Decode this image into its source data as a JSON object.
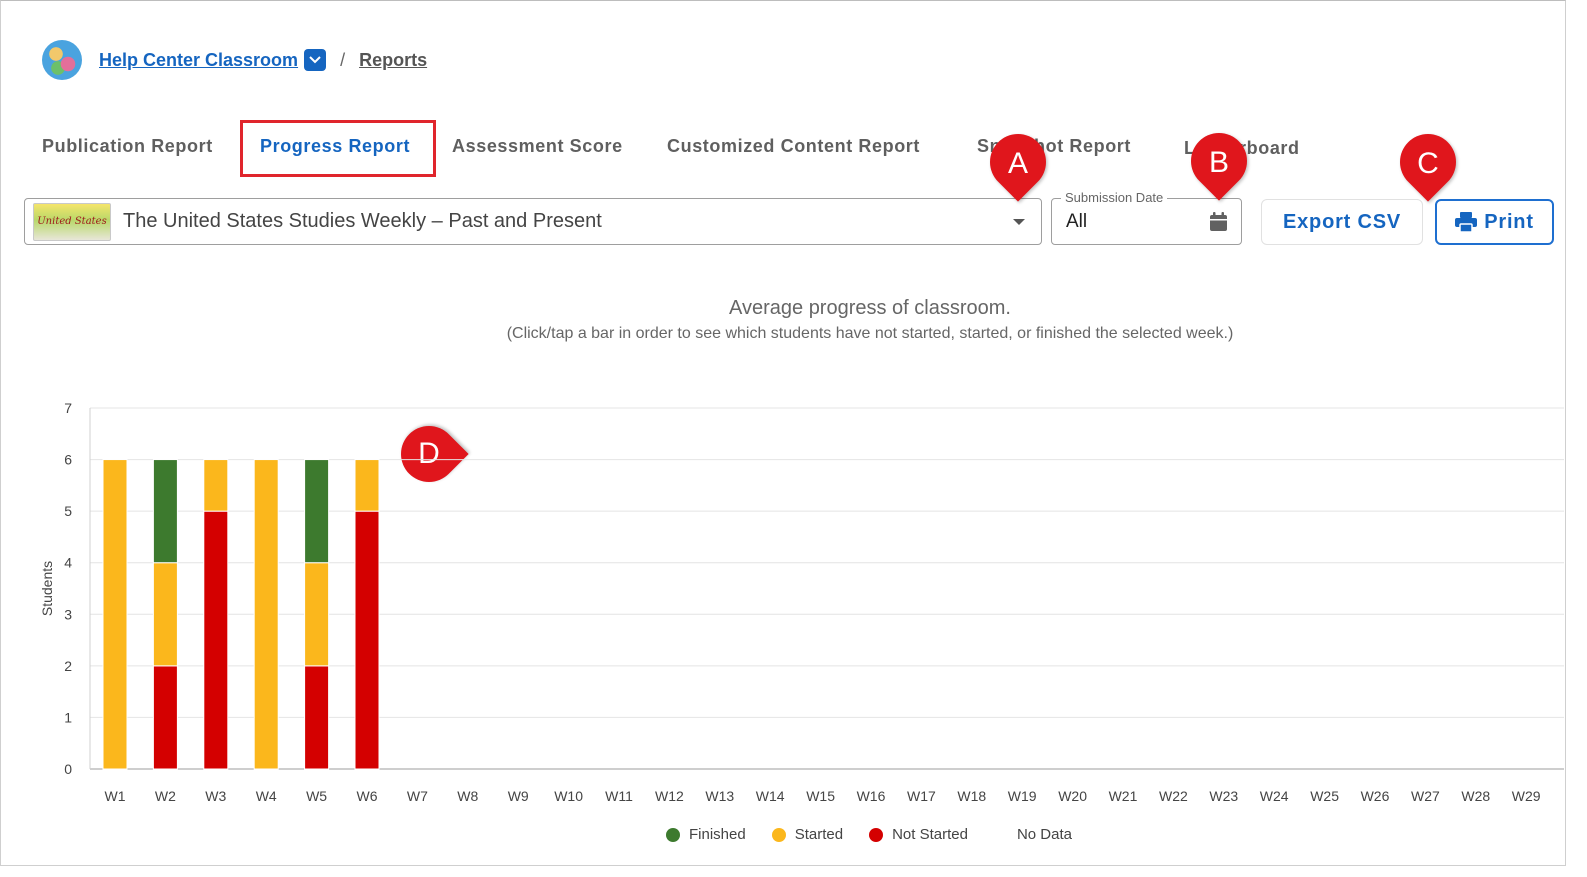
{
  "breadcrumb": {
    "classroom": "Help Center Classroom",
    "separator": "/",
    "current": "Reports"
  },
  "tabs": [
    {
      "label": "Publication Report"
    },
    {
      "label": "Progress Report",
      "active": true
    },
    {
      "label": "Assessment Score"
    },
    {
      "label": "Customized Content Report"
    },
    {
      "label": "Snapshot Report"
    },
    {
      "label": "Leaderboard"
    }
  ],
  "controls": {
    "book_thumb_text": "United States",
    "book_title": "The United States Studies Weekly – Past and Present",
    "date_label": "Submission Date",
    "date_value": "All",
    "export_label": "Export CSV",
    "print_label": "Print"
  },
  "callouts": {
    "a": "A",
    "b": "B",
    "c": "C",
    "d": "D"
  },
  "colors": {
    "accent": "#1565c0",
    "finished": "#3d7a2e",
    "started": "#fbb71c",
    "not_started": "#d40000",
    "callout": "#e0161c"
  },
  "chart_title": "Average progress of classroom.",
  "chart_subtitle": "(Click/tap a bar in order to see which students have not started, started, or finished the selected week.)",
  "chart_data": {
    "type": "bar",
    "stacked": true,
    "ylabel": "Students",
    "ylim": [
      0,
      7
    ],
    "yticks": [
      0,
      1,
      2,
      3,
      4,
      5,
      6,
      7
    ],
    "grid": true,
    "legend": "bottom",
    "categories": [
      "W1",
      "W2",
      "W3",
      "W4",
      "W5",
      "W6",
      "W7",
      "W8",
      "W9",
      "W10",
      "W11",
      "W12",
      "W13",
      "W14",
      "W15",
      "W16",
      "W17",
      "W18",
      "W19",
      "W20",
      "W21",
      "W22",
      "W23",
      "W24",
      "W25",
      "W26",
      "W27",
      "W28",
      "W29"
    ],
    "series": [
      {
        "name": "Not Started",
        "values": [
          0,
          2,
          5,
          0,
          2,
          5,
          0,
          0,
          0,
          0,
          0,
          0,
          0,
          0,
          0,
          0,
          0,
          0,
          0,
          0,
          0,
          0,
          0,
          0,
          0,
          0,
          0,
          0,
          0
        ]
      },
      {
        "name": "Started",
        "values": [
          6,
          2,
          1,
          6,
          2,
          1,
          0,
          0,
          0,
          0,
          0,
          0,
          0,
          0,
          0,
          0,
          0,
          0,
          0,
          0,
          0,
          0,
          0,
          0,
          0,
          0,
          0,
          0,
          0
        ]
      },
      {
        "name": "Finished",
        "values": [
          0,
          2,
          0,
          0,
          2,
          0,
          0,
          0,
          0,
          0,
          0,
          0,
          0,
          0,
          0,
          0,
          0,
          0,
          0,
          0,
          0,
          0,
          0,
          0,
          0,
          0,
          0,
          0,
          0
        ]
      }
    ]
  },
  "legend": [
    {
      "label": "Finished",
      "color": "#3d7a2e"
    },
    {
      "label": "Started",
      "color": "#fbb71c"
    },
    {
      "label": "Not Started",
      "color": "#d40000"
    },
    {
      "label": "No Data",
      "color": ""
    }
  ]
}
